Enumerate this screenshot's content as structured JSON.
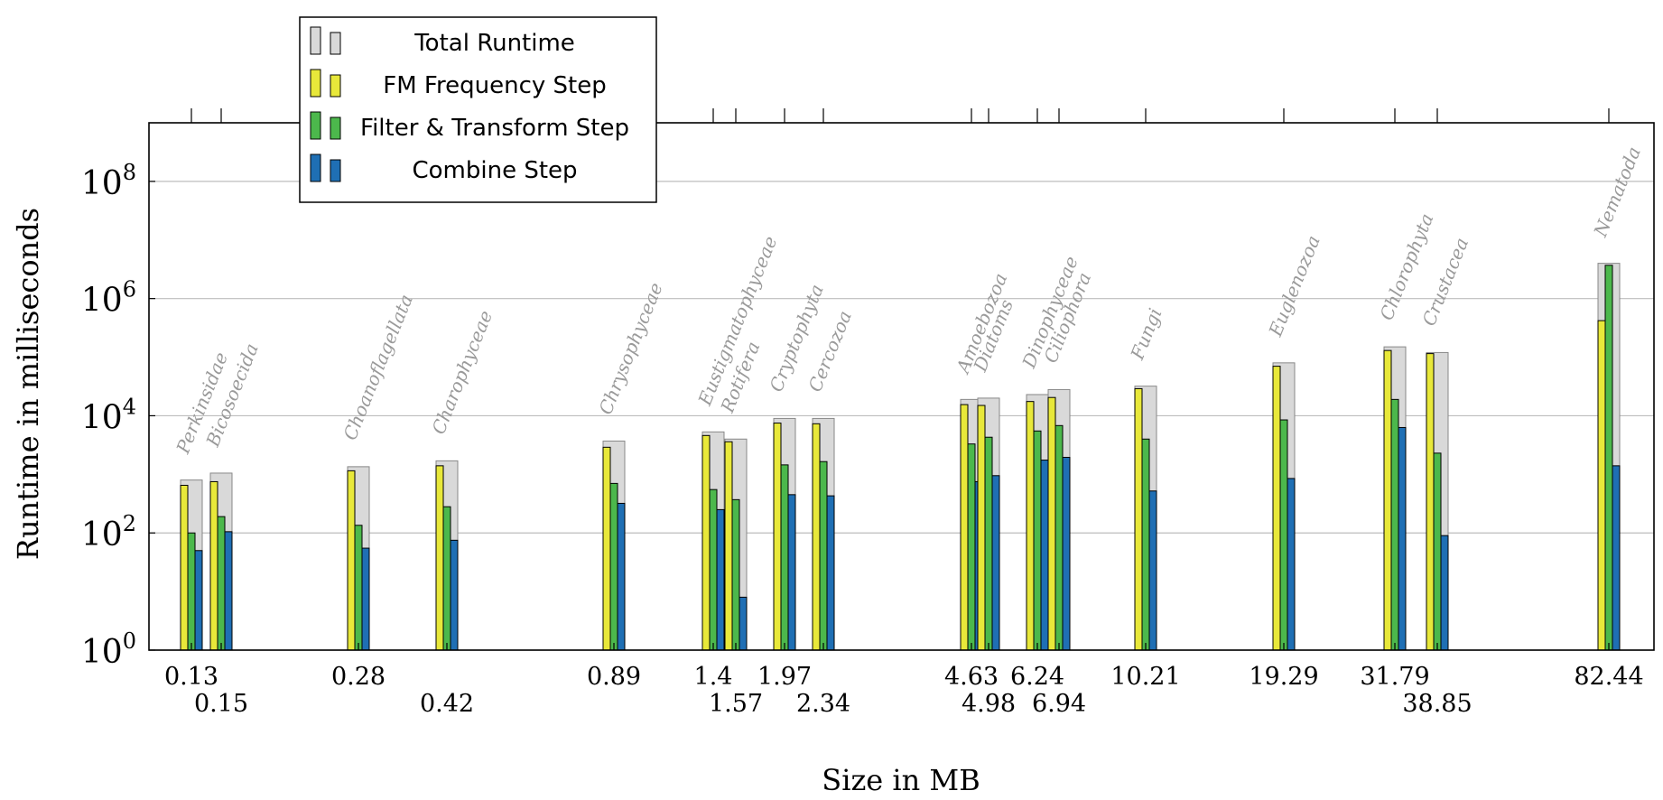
{
  "chart_data": {
    "type": "bar",
    "xlabel": "Size in MB",
    "ylabel": "Runtime in milliseconds",
    "yscale": "log",
    "ylim": [
      1,
      1000000000
    ],
    "y_ticks": [
      {
        "value": 1,
        "base": "10",
        "exp": "0"
      },
      {
        "value": 100,
        "base": "10",
        "exp": "2"
      },
      {
        "value": 10000,
        "base": "10",
        "exp": "4"
      },
      {
        "value": 1000000,
        "base": "10",
        "exp": "6"
      },
      {
        "value": 100000000,
        "base": "10",
        "exp": "8"
      }
    ],
    "grid": true,
    "legend_position": "top-left",
    "series": [
      {
        "key": "total",
        "name": "Total Runtime",
        "color": "#d9d9d9"
      },
      {
        "key": "fm",
        "name": "FM Frequency Step",
        "color": "#e8e83a"
      },
      {
        "key": "ft",
        "name": "Filter & Transform Step",
        "color": "#4cb84c"
      },
      {
        "key": "cs",
        "name": "Combine Step",
        "color": "#1f6fb4"
      }
    ],
    "groups": [
      {
        "label": "Perkinsidae",
        "size": "0.13",
        "size_row": 1,
        "total": 800,
        "fm": 650,
        "ft": 100,
        "cs": 50
      },
      {
        "label": "Bicosoecida",
        "size": "0.15",
        "size_row": 2,
        "total": 1050,
        "fm": 750,
        "ft": 190,
        "cs": 105
      },
      {
        "label": "Choanoflagellata",
        "size": "0.28",
        "size_row": 1,
        "total": 1350,
        "fm": 1150,
        "ft": 135,
        "cs": 55
      },
      {
        "label": "Charophyceae",
        "size": "0.42",
        "size_row": 2,
        "total": 1700,
        "fm": 1400,
        "ft": 280,
        "cs": 75
      },
      {
        "label": "Chrysophyceae",
        "size": "0.89",
        "size_row": 1,
        "total": 3700,
        "fm": 2900,
        "ft": 700,
        "cs": 320
      },
      {
        "label": "Eustigmatophyceae",
        "size": "1.4",
        "size_row": 1,
        "total": 5300,
        "fm": 4600,
        "ft": 550,
        "cs": 250
      },
      {
        "label": "Rotifera",
        "size": "1.57",
        "size_row": 2,
        "total": 4000,
        "fm": 3600,
        "ft": 370,
        "cs": 8
      },
      {
        "label": "Cryptophyta",
        "size": "1.97",
        "size_row": 1,
        "total": 9000,
        "fm": 7500,
        "ft": 1450,
        "cs": 450
      },
      {
        "label": "Cercozoa",
        "size": "2.34",
        "size_row": 2,
        "total": 9000,
        "fm": 7300,
        "ft": 1650,
        "cs": 430
      },
      {
        "label": "Amoebozoa",
        "size": "4.63",
        "size_row": 1,
        "total": 19000,
        "fm": 15500,
        "ft": 3300,
        "cs": 750
      },
      {
        "label": "Diatoms",
        "size": "4.98",
        "size_row": 2,
        "total": 20000,
        "fm": 15000,
        "ft": 4300,
        "cs": 950
      },
      {
        "label": "Dinophyceae",
        "size": "6.24",
        "size_row": 1,
        "total": 23000,
        "fm": 17500,
        "ft": 5500,
        "cs": 1750
      },
      {
        "label": "Ciliophora",
        "size": "6.94",
        "size_row": 2,
        "total": 28000,
        "fm": 20500,
        "ft": 6800,
        "cs": 1950
      },
      {
        "label": "Fungi",
        "size": "10.21",
        "size_row": 1,
        "total": 32000,
        "fm": 29000,
        "ft": 4000,
        "cs": 520
      },
      {
        "label": "Euglenozoa",
        "size": "19.29",
        "size_row": 1,
        "total": 80000,
        "fm": 70000,
        "ft": 8500,
        "cs": 850
      },
      {
        "label": "Chlorophyta",
        "size": "31.79",
        "size_row": 1,
        "total": 150000,
        "fm": 130000,
        "ft": 19000,
        "cs": 6300
      },
      {
        "label": "Crustacea",
        "size": "38.85",
        "size_row": 2,
        "total": 120000,
        "fm": 115000,
        "ft": 2300,
        "cs": 90
      },
      {
        "label": "Nematoda",
        "size": "82.44",
        "size_row": 1,
        "total": 4000000,
        "fm": 420000,
        "ft": 3700000,
        "cs": 1400
      }
    ]
  }
}
